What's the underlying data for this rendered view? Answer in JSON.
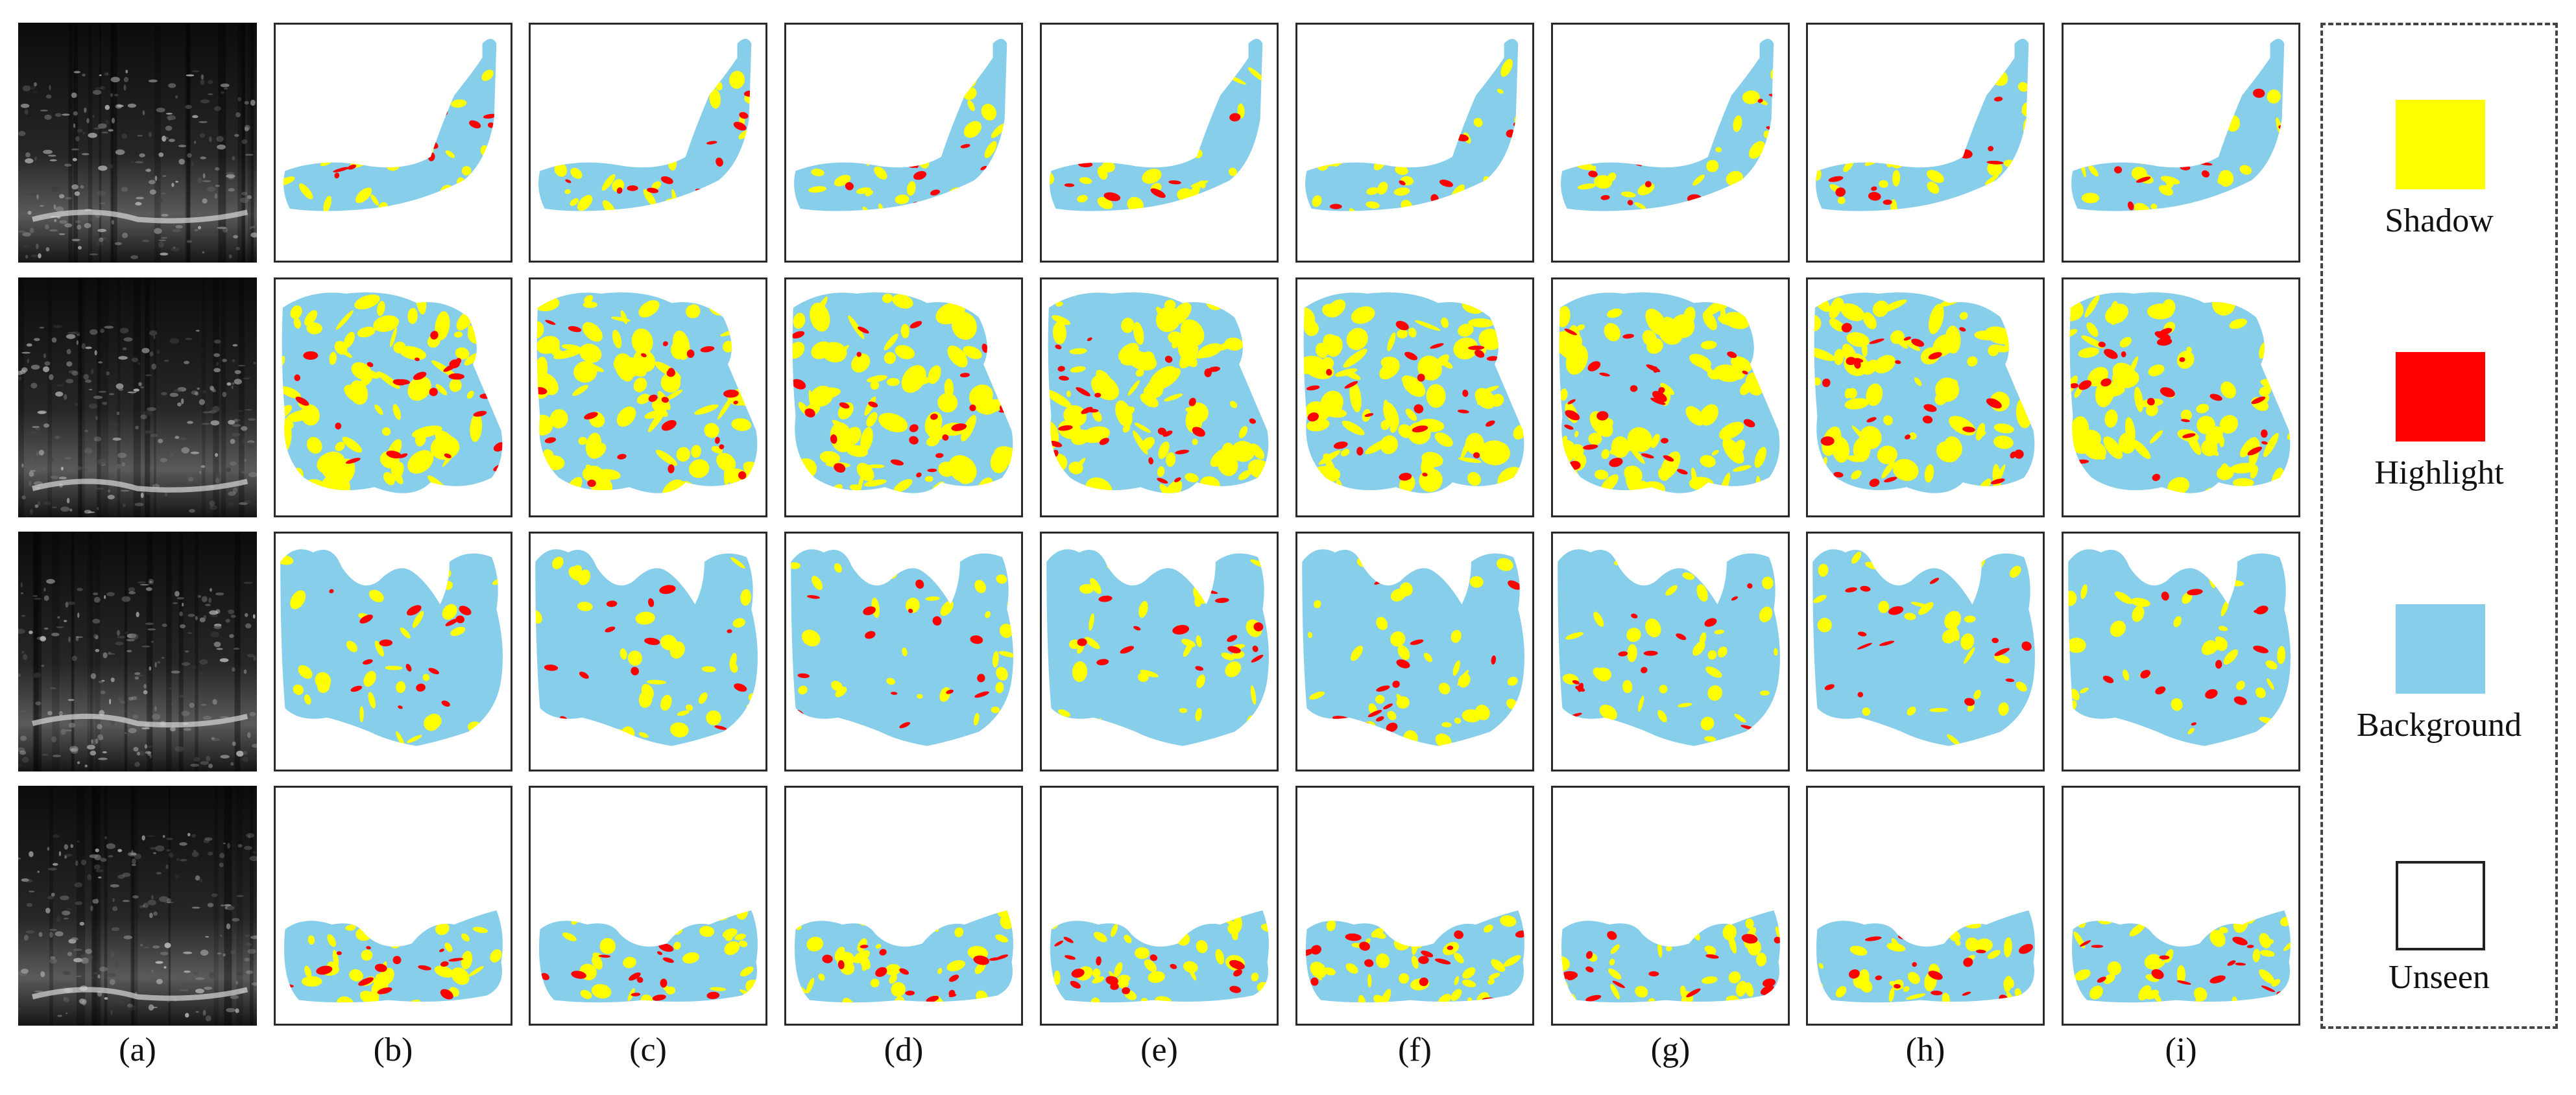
{
  "columns": [
    {
      "id": "a",
      "label": "(a)"
    },
    {
      "id": "b",
      "label": "(b)"
    },
    {
      "id": "c",
      "label": "(c)"
    },
    {
      "id": "d",
      "label": "(d)"
    },
    {
      "id": "e",
      "label": "(e)"
    },
    {
      "id": "f",
      "label": "(f)"
    },
    {
      "id": "g",
      "label": "(g)"
    },
    {
      "id": "h",
      "label": "(h)"
    },
    {
      "id": "i",
      "label": "(i)"
    }
  ],
  "rows": 4,
  "colors": {
    "shadow": "#FFFF00",
    "highlight": "#FF0000",
    "background": "#87CEEB",
    "unseen": "#FFFFFF",
    "frame": "#2a2a2a"
  },
  "legend": {
    "items": [
      {
        "key": "shadow",
        "label": "Shadow"
      },
      {
        "key": "highlight",
        "label": "Highlight"
      },
      {
        "key": "background",
        "label": "Background"
      },
      {
        "key": "unseen",
        "label": "Unseen"
      }
    ]
  }
}
